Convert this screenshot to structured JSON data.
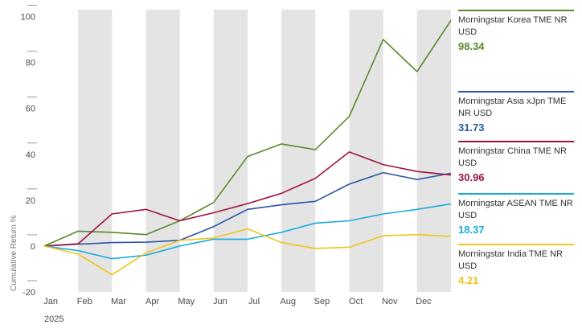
{
  "chart_data": {
    "type": "line",
    "title": "",
    "xlabel": "",
    "ylabel": "Cumulative Return %",
    "year_label": "2025",
    "categories": [
      "Jan",
      "Feb",
      "Mar",
      "Apr",
      "May",
      "Jun",
      "Jul",
      "Aug",
      "Sep",
      "Oct",
      "Nov",
      "Dec"
    ],
    "x": [
      0,
      1,
      2,
      3,
      4,
      5,
      6,
      7,
      8,
      9,
      10,
      11,
      12
    ],
    "xlim": [
      0,
      12
    ],
    "ylim": [
      -20,
      103
    ],
    "yticks": [
      -20,
      0,
      20,
      40,
      60,
      80,
      100
    ],
    "grid": "alternating month bands",
    "legend_position": "right",
    "series": [
      {
        "name": "Morningstar Korea TME NR USD",
        "color": "#5a8a2a",
        "last_label": "98.34",
        "values": [
          0,
          6.5,
          6,
          5,
          11,
          19,
          39,
          44.5,
          42,
          56.5,
          90,
          76,
          98.34
        ]
      },
      {
        "name": "Morningstar Asia xJpn TME NR USD",
        "color": "#2a55a8",
        "last_label": "31.73",
        "values": [
          0,
          0.8,
          1.5,
          1.7,
          2.5,
          8.5,
          16,
          18,
          19.5,
          27,
          32,
          29,
          31.73
        ]
      },
      {
        "name": "Morningstar China TME NR USD",
        "color": "#a0123e",
        "last_label": "30.96",
        "values": [
          0,
          1,
          14,
          16,
          11,
          14.5,
          18.5,
          23,
          29.5,
          41,
          35.5,
          32.5,
          30.96
        ]
      },
      {
        "name": "Morningstar ASEAN TME NR USD",
        "color": "#1aa9df",
        "last_label": "18.37",
        "values": [
          0,
          -2,
          -5.5,
          -4,
          0,
          3,
          3,
          6,
          10,
          11,
          14,
          16,
          18.37
        ]
      },
      {
        "name": "Morningstar India TME NR USD",
        "color": "#f0c419",
        "last_label": "4.21",
        "values": [
          0,
          -3.5,
          -12.5,
          -3,
          2.5,
          3.5,
          7.5,
          1.5,
          -1,
          -0.5,
          4.5,
          5,
          4.21
        ]
      }
    ]
  }
}
